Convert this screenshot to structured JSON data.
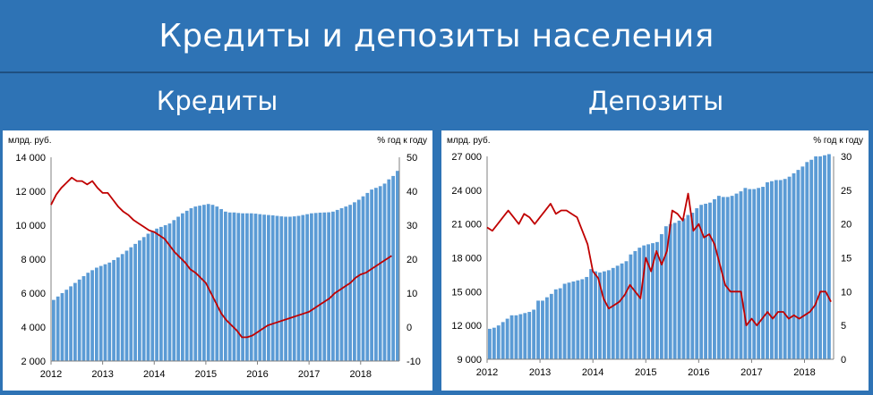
{
  "header": {
    "title": "Кредиты и депозиты населения"
  },
  "subtitles": {
    "left": "Кредиты",
    "right": "Депозиты"
  },
  "colors": {
    "background": "#2e73b5",
    "bars": "#5b9bd5",
    "line": "#c00000"
  },
  "chart_data": [
    {
      "type": "bar+line",
      "title": "Кредиты",
      "ylabel_left": "млрд. руб.",
      "ylabel_right": "% год к году",
      "xticks": [
        "2012",
        "2013",
        "2014",
        "2015",
        "2016",
        "2017",
        "2018"
      ],
      "yticks_left": [
        "14 000",
        "12 000",
        "10 000",
        "8 000",
        "6 000",
        "4 000",
        "2 000"
      ],
      "yticks_right": [
        "50",
        "40",
        "30",
        "20",
        "10",
        "0",
        "-10"
      ],
      "ylim_left": [
        2000,
        14000
      ],
      "ylim_right": [
        -10,
        50
      ],
      "x_start": 2012.0,
      "x_end": 2018.75,
      "bar_step": 0.0833,
      "series": [
        {
          "name": "",
          "kind": "bar",
          "axis": "left",
          "values": [
            5600,
            5800,
            6000,
            6200,
            6400,
            6600,
            6800,
            7000,
            7200,
            7350,
            7500,
            7600,
            7700,
            7800,
            7950,
            8100,
            8300,
            8500,
            8700,
            8900,
            9100,
            9300,
            9500,
            9650,
            9800,
            9900,
            10000,
            10100,
            10300,
            10500,
            10700,
            10850,
            11000,
            11100,
            11150,
            11200,
            11250,
            11200,
            11100,
            10950,
            10800,
            10750,
            10750,
            10720,
            10700,
            10700,
            10700,
            10680,
            10650,
            10620,
            10600,
            10580,
            10550,
            10520,
            10500,
            10500,
            10520,
            10550,
            10600,
            10650,
            10700,
            10720,
            10740,
            10750,
            10760,
            10800,
            10900,
            11000,
            11100,
            11200,
            11350,
            11500,
            11700,
            11900,
            12100,
            12200,
            12300,
            12450,
            12700,
            12900,
            13200
          ]
        },
        {
          "name": "",
          "kind": "line",
          "axis": "right",
          "x": [
            2012.0,
            2012.1,
            2012.2,
            2012.3,
            2012.4,
            2012.5,
            2012.6,
            2012.7,
            2012.8,
            2012.9,
            2013.0,
            2013.1,
            2013.2,
            2013.3,
            2013.4,
            2013.5,
            2013.6,
            2013.7,
            2013.8,
            2013.9,
            2014.0,
            2014.1,
            2014.2,
            2014.3,
            2014.4,
            2014.5,
            2014.6,
            2014.7,
            2014.8,
            2014.9,
            2015.0,
            2015.1,
            2015.2,
            2015.3,
            2015.4,
            2015.5,
            2015.6,
            2015.7,
            2015.8,
            2015.9,
            2016.0,
            2016.1,
            2016.2,
            2016.3,
            2016.4,
            2016.5,
            2016.6,
            2016.7,
            2016.8,
            2016.9,
            2017.0,
            2017.1,
            2017.2,
            2017.3,
            2017.4,
            2017.5,
            2017.6,
            2017.7,
            2017.8,
            2017.9,
            2018.0,
            2018.1,
            2018.2,
            2018.3,
            2018.4,
            2018.5,
            2018.6
          ],
          "values": [
            36,
            39,
            41,
            42.5,
            44,
            43,
            43,
            42,
            43,
            41,
            39.5,
            39.5,
            37.5,
            35.5,
            34,
            33,
            31.5,
            30.5,
            29.5,
            28.5,
            28,
            27,
            26,
            24,
            22,
            20.5,
            19,
            17,
            16,
            14.5,
            13,
            10,
            7,
            4,
            2,
            0.5,
            -1,
            -3,
            -3,
            -2.5,
            -1.5,
            -0.5,
            0.5,
            1,
            1.5,
            2,
            2.5,
            3,
            3.5,
            4,
            4.5,
            5.5,
            6.5,
            7.5,
            8.5,
            10,
            11,
            12,
            13,
            14.5,
            15.5,
            16,
            17,
            18,
            19,
            20,
            21
          ]
        }
      ]
    },
    {
      "type": "bar+line",
      "title": "Депозиты",
      "ylabel_left": "млрд. руб.",
      "ylabel_right": "% год к году",
      "xticks": [
        "2012",
        "2013",
        "2014",
        "2015",
        "2016",
        "2017",
        "2018"
      ],
      "yticks_left": [
        "27 000",
        "24 000",
        "21 000",
        "18 000",
        "15 000",
        "12 000",
        "9 000"
      ],
      "yticks_right": [
        "30",
        "25",
        "20",
        "15",
        "10",
        "5",
        "0"
      ],
      "ylim_left": [
        9000,
        27000
      ],
      "ylim_right": [
        0,
        30
      ],
      "x_start": 2012.0,
      "x_end": 2018.55,
      "bar_step": 0.0833,
      "series": [
        {
          "name": "",
          "kind": "bar",
          "axis": "left",
          "values": [
            11700,
            11800,
            12000,
            12300,
            12600,
            12900,
            12900,
            13000,
            13100,
            13200,
            13400,
            14200,
            14200,
            14500,
            14800,
            15200,
            15300,
            15700,
            15800,
            15900,
            16000,
            16100,
            16300,
            17000,
            16800,
            16700,
            16800,
            16900,
            17100,
            17300,
            17500,
            17700,
            18300,
            18600,
            18900,
            19100,
            19200,
            19300,
            19400,
            20100,
            20800,
            21000,
            21100,
            21300,
            21500,
            21800,
            22000,
            22400,
            22700,
            22800,
            22900,
            23200,
            23500,
            23400,
            23400,
            23500,
            23700,
            23900,
            24200,
            24100,
            24100,
            24200,
            24300,
            24700,
            24800,
            24900,
            24900,
            25000,
            25200,
            25500,
            25800,
            26100,
            26500,
            26700,
            27000,
            27000,
            27100,
            27200
          ]
        },
        {
          "name": "",
          "kind": "line",
          "axis": "right",
          "x": [
            2012.0,
            2012.1,
            2012.2,
            2012.3,
            2012.4,
            2012.5,
            2012.6,
            2012.7,
            2012.8,
            2012.9,
            2013.0,
            2013.1,
            2013.2,
            2013.3,
            2013.4,
            2013.5,
            2013.6,
            2013.7,
            2013.8,
            2013.9,
            2014.0,
            2014.1,
            2014.2,
            2014.3,
            2014.4,
            2014.5,
            2014.6,
            2014.7,
            2014.8,
            2014.9,
            2015.0,
            2015.1,
            2015.2,
            2015.3,
            2015.4,
            2015.5,
            2015.6,
            2015.7,
            2015.8,
            2015.9,
            2016.0,
            2016.1,
            2016.2,
            2016.3,
            2016.4,
            2016.5,
            2016.6,
            2016.7,
            2016.8,
            2016.9,
            2017.0,
            2017.1,
            2017.2,
            2017.3,
            2017.4,
            2017.5,
            2017.6,
            2017.7,
            2017.8,
            2017.9,
            2018.0,
            2018.1,
            2018.2,
            2018.3,
            2018.4,
            2018.5
          ],
          "values": [
            19.5,
            19,
            20,
            21,
            22,
            21,
            20,
            21.5,
            21,
            20,
            21,
            22,
            23,
            21.5,
            22,
            22,
            21.5,
            21,
            19,
            17,
            13,
            12,
            9,
            7.5,
            8,
            8.5,
            9.5,
            11,
            10,
            9,
            15,
            13,
            16,
            14,
            16,
            22,
            21.5,
            20.5,
            24.5,
            19,
            20,
            18,
            18.5,
            17,
            14,
            11,
            10,
            10,
            10,
            5,
            6,
            5,
            6,
            7,
            6,
            7,
            7,
            6,
            6.5,
            6,
            6.5,
            7,
            8,
            10,
            10,
            8.5
          ]
        }
      ]
    }
  ]
}
